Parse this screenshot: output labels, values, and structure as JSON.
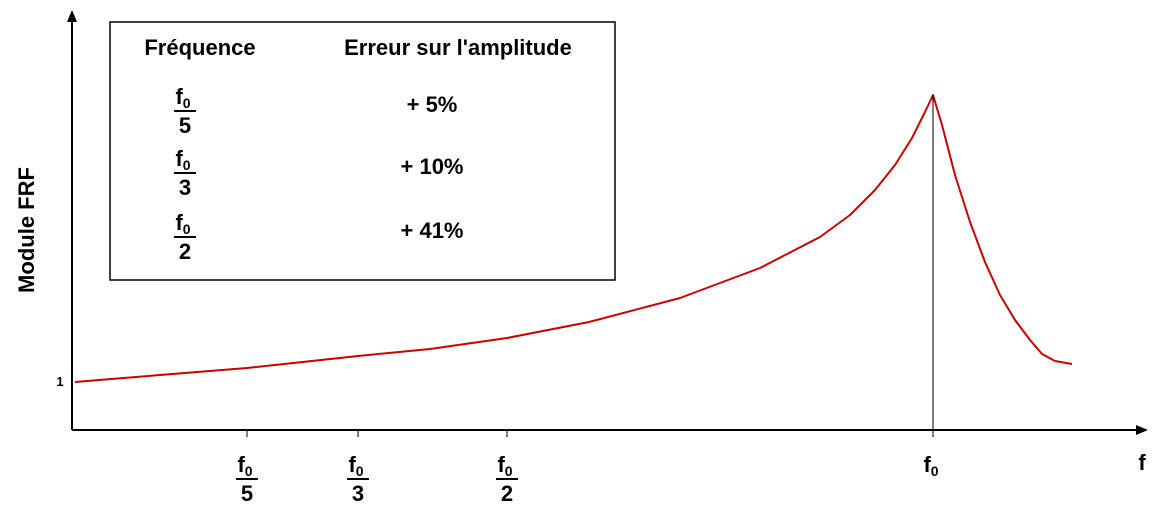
{
  "axes": {
    "y_label": "Module FRF",
    "y_tick": "1",
    "x_label": "f",
    "x_ticks": [
      {
        "numerator": "f",
        "subscript": "0",
        "denominator": "5"
      },
      {
        "numerator": "f",
        "subscript": "0",
        "denominator": "3"
      },
      {
        "numerator": "f",
        "subscript": "0",
        "denominator": "2"
      }
    ],
    "peak_tick": {
      "numerator": "f",
      "subscript": "0"
    }
  },
  "table": {
    "header": [
      "Fréquence",
      "Erreur sur l'amplitude"
    ],
    "rows": [
      {
        "numerator": "f",
        "subscript": "0",
        "denominator": "5",
        "error": "+ 5%"
      },
      {
        "numerator": "f",
        "subscript": "0",
        "denominator": "3",
        "error": "+ 10%"
      },
      {
        "numerator": "f",
        "subscript": "0",
        "denominator": "2",
        "error": "+ 41%"
      }
    ]
  }
}
